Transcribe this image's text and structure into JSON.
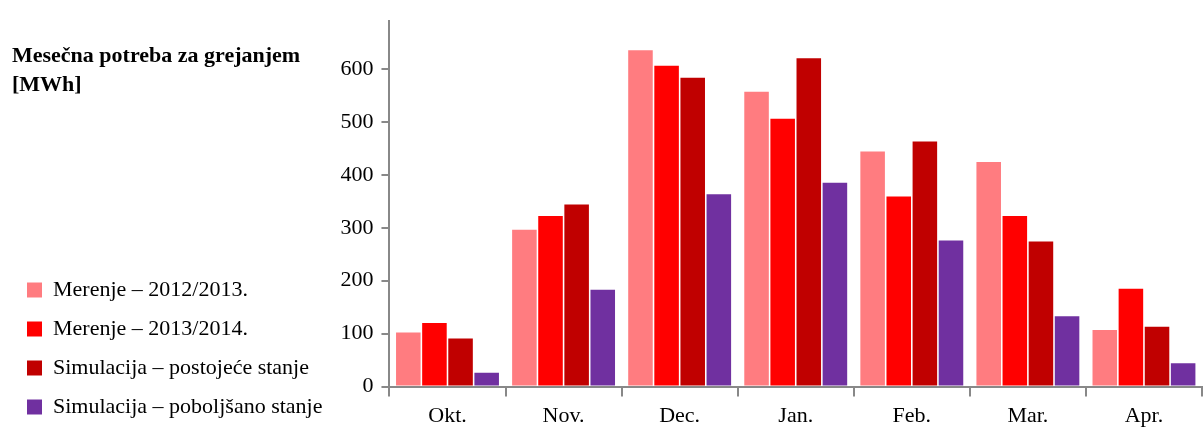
{
  "chart_data": {
    "type": "bar",
    "title": "Mesečna potreba za grejanjem [MWh]",
    "categories": [
      "Okt.",
      "Nov.",
      "Dec.",
      "Jan.",
      "Feb.",
      "Mar.",
      "Apr."
    ],
    "series": [
      {
        "name": "Merenje – 2012/2013.",
        "color": "#ff7c80",
        "values": [
          102,
          296,
          635,
          557,
          444,
          424,
          107
        ]
      },
      {
        "name": "Merenje – 2013/2014.",
        "color": "#ff0000",
        "values": [
          120,
          322,
          606,
          506,
          359,
          322,
          185
        ]
      },
      {
        "name": "Simulacija – postojeće stanje",
        "color": "#c00000",
        "values": [
          91,
          344,
          583,
          620,
          463,
          274,
          113
        ]
      },
      {
        "name": "Simulacija – poboljšano stanje",
        "color": "#7030a0",
        "values": [
          26,
          183,
          363,
          385,
          276,
          133,
          44
        ]
      }
    ],
    "ylim": [
      0,
      690
    ],
    "yticks": [
      0,
      100,
      200,
      300,
      400,
      500,
      600
    ],
    "grid": false,
    "legend": "left"
  }
}
